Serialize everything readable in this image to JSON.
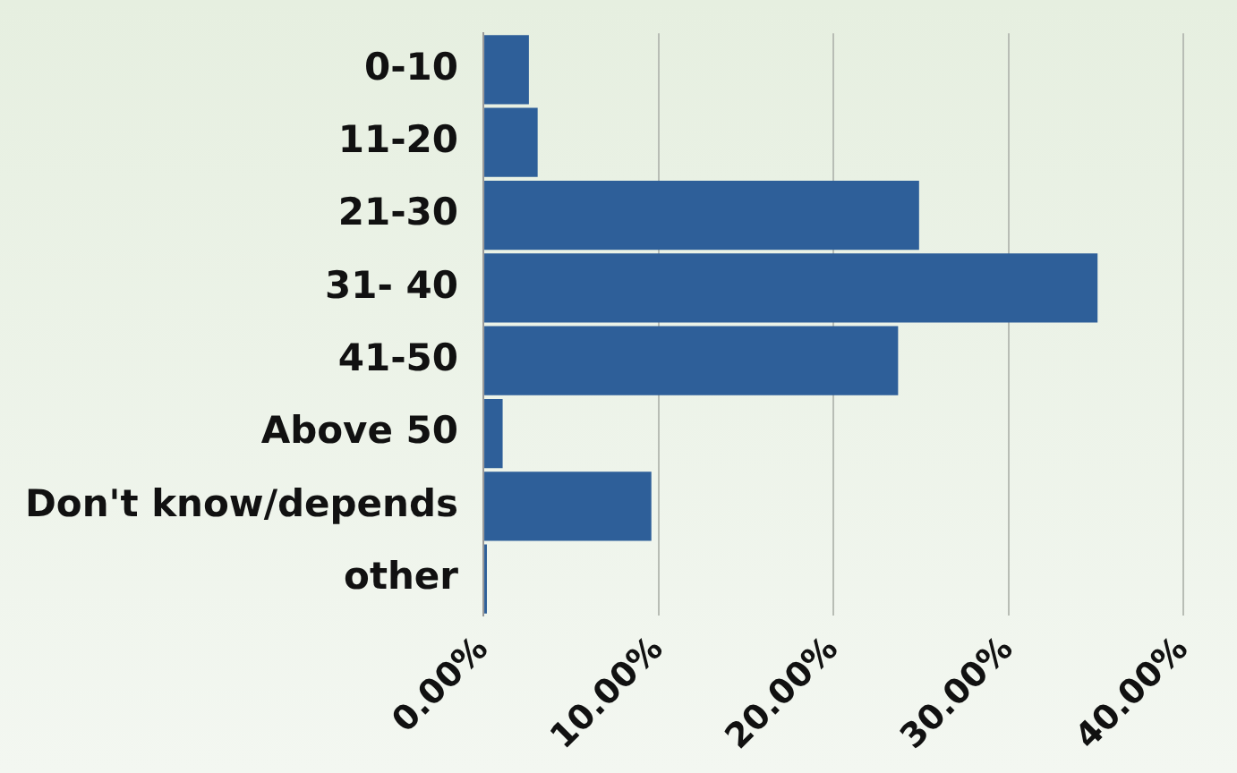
{
  "chart_data": {
    "type": "bar",
    "orientation": "horizontal",
    "categories": [
      "0-10",
      "11-20",
      "21-30",
      "31- 40",
      "41-50",
      "Above 50",
      "Don't know/depends",
      "other"
    ],
    "values": [
      2.6,
      3.1,
      24.9,
      35.1,
      23.7,
      1.1,
      9.6,
      0.2
    ],
    "color": "#2e5f99",
    "xlim": [
      0,
      40
    ],
    "xticks": [
      {
        "value": 0,
        "label": "0.00%"
      },
      {
        "value": 10,
        "label": "10.00%"
      },
      {
        "value": 20,
        "label": "20.00%"
      },
      {
        "value": 30,
        "label": "30.00%"
      },
      {
        "value": 40,
        "label": "40.00%"
      }
    ],
    "grid": "x",
    "legend": false
  }
}
